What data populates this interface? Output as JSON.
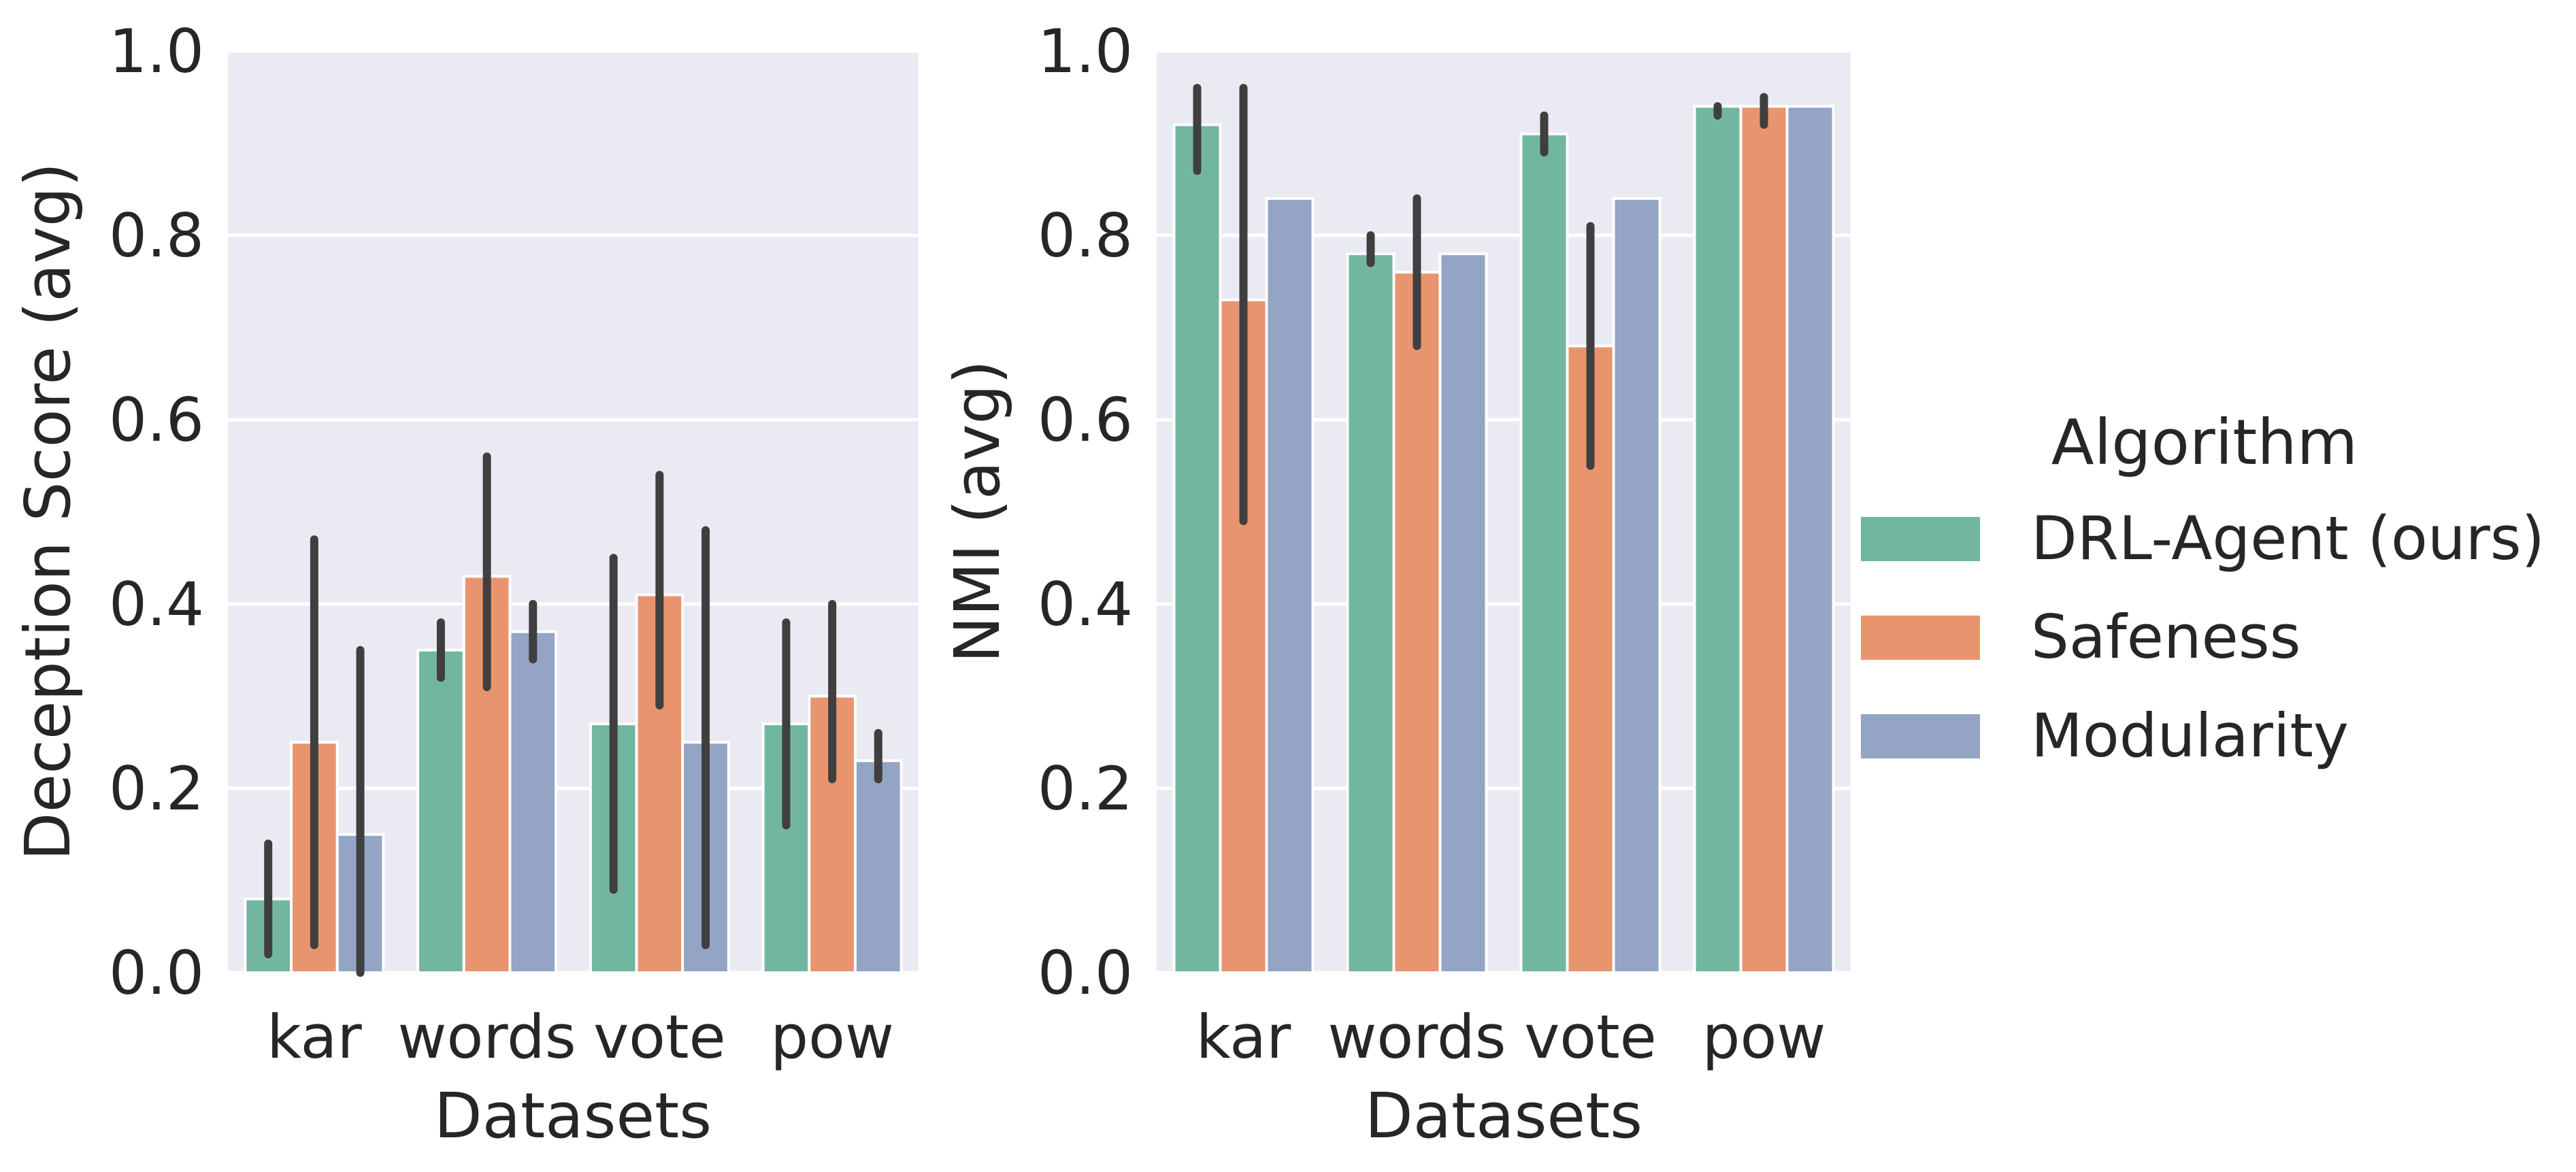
{
  "chart_data": [
    {
      "type": "bar",
      "categories": [
        "kar",
        "words",
        "vote",
        "pow"
      ],
      "xlabel": "Datasets",
      "ylabel": "Deception Score (avg)",
      "ylim": [
        0,
        1.0
      ],
      "yticks": [
        "0.0",
        "0.2",
        "0.4",
        "0.6",
        "0.8",
        "1.0"
      ],
      "grid": true,
      "series": [
        {
          "name": "DRL-Agent (ours)",
          "values": [
            0.08,
            0.35,
            0.27,
            0.27
          ],
          "err_low": [
            0.02,
            0.32,
            0.09,
            0.16
          ],
          "err_high": [
            0.14,
            0.38,
            0.45,
            0.38
          ]
        },
        {
          "name": "Safeness",
          "values": [
            0.25,
            0.43,
            0.41,
            0.3
          ],
          "err_low": [
            0.03,
            0.31,
            0.29,
            0.21
          ],
          "err_high": [
            0.47,
            0.56,
            0.54,
            0.4
          ]
        },
        {
          "name": "Modularity",
          "values": [
            0.15,
            0.37,
            0.25,
            0.23
          ],
          "err_low": [
            0.0,
            0.34,
            0.03,
            0.21
          ],
          "err_high": [
            0.35,
            0.4,
            0.48,
            0.26
          ]
        }
      ]
    },
    {
      "type": "bar",
      "categories": [
        "kar",
        "words",
        "vote",
        "pow"
      ],
      "xlabel": "Datasets",
      "ylabel": "NMI (avg)",
      "ylim": [
        0,
        1.0
      ],
      "yticks": [
        "0.0",
        "0.2",
        "0.4",
        "0.6",
        "0.8",
        "1.0"
      ],
      "grid": true,
      "series": [
        {
          "name": "DRL-Agent (ours)",
          "values": [
            0.92,
            0.78,
            0.91,
            0.94
          ],
          "err_low": [
            0.87,
            0.77,
            0.89,
            0.93
          ],
          "err_high": [
            0.96,
            0.8,
            0.93,
            0.94
          ]
        },
        {
          "name": "Safeness",
          "values": [
            0.73,
            0.76,
            0.68,
            0.94
          ],
          "err_low": [
            0.49,
            0.68,
            0.55,
            0.92
          ],
          "err_high": [
            0.96,
            0.84,
            0.81,
            0.95
          ]
        },
        {
          "name": "Modularity",
          "values": [
            0.84,
            0.78,
            0.84,
            0.94
          ],
          "err_low": [
            0.84,
            0.78,
            0.84,
            0.94
          ],
          "err_high": [
            0.84,
            0.78,
            0.84,
            0.94
          ]
        }
      ]
    }
  ],
  "legend": {
    "title": "Algorithm",
    "placement": "center-right",
    "items": [
      {
        "label": "DRL-Agent (ours)",
        "color": "#66c2a5"
      },
      {
        "label": "Safeness",
        "color": "#fc8d62"
      },
      {
        "label": "Modularity",
        "color": "#8da0cb"
      }
    ]
  },
  "colors": {
    "series": [
      "#66c2a5",
      "#fc8d62",
      "#8da0cb"
    ],
    "bar_fill": [
      "#73b6a0",
      "#e8956f",
      "#94a4c4"
    ],
    "error_bar": "#3f3f3f",
    "axes_background": "#eaeaf2",
    "grid": "#ffffff",
    "text": "#262626"
  }
}
